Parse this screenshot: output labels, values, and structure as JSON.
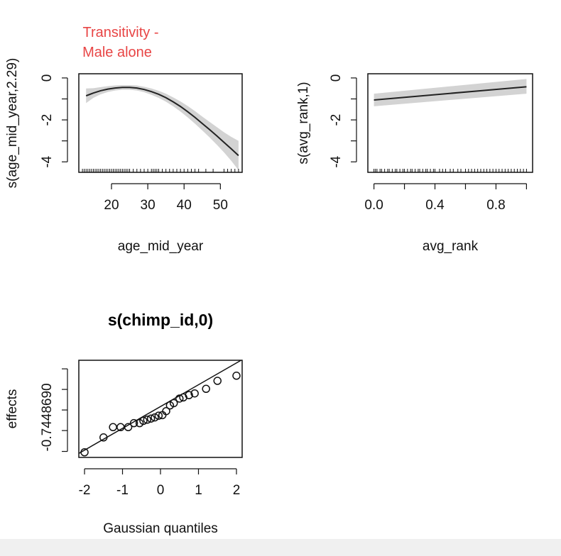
{
  "annotation": {
    "line1": "Transitivity -",
    "line2": "Male alone",
    "color": "#e84545"
  },
  "chart_data": [
    {
      "id": "age",
      "type": "line",
      "title": "",
      "xlabel": "age_mid_year",
      "ylabel": "s(age_mid_year,2.29)",
      "xlim": [
        11,
        56
      ],
      "ylim": [
        -4.5,
        0.2
      ],
      "xticks": [
        20,
        30,
        40,
        50
      ],
      "xtick_labels": [
        "20",
        "30",
        "40",
        "50"
      ],
      "yticks": [
        0,
        -1,
        -2,
        -3,
        -4
      ],
      "ytick_labels": [
        "0",
        "",
        "-2",
        "",
        "-4"
      ],
      "band_color": "#d3d3d3",
      "line_color": "#222222",
      "series": [
        {
          "x": [
            13,
            15,
            17,
            19,
            21,
            23,
            25,
            27,
            29,
            31,
            33,
            35,
            37,
            39,
            41,
            43,
            45,
            47,
            49,
            51,
            53,
            55
          ],
          "y": [
            -0.85,
            -0.72,
            -0.61,
            -0.53,
            -0.48,
            -0.45,
            -0.45,
            -0.48,
            -0.55,
            -0.65,
            -0.78,
            -0.94,
            -1.14,
            -1.36,
            -1.61,
            -1.88,
            -2.17,
            -2.46,
            -2.76,
            -3.07,
            -3.38,
            -3.7
          ],
          "lower": [
            -1.2,
            -0.95,
            -0.78,
            -0.67,
            -0.6,
            -0.56,
            -0.56,
            -0.6,
            -0.68,
            -0.8,
            -0.95,
            -1.13,
            -1.35,
            -1.6,
            -1.88,
            -2.18,
            -2.5,
            -2.83,
            -3.18,
            -3.55,
            -3.95,
            -4.4
          ],
          "upper": [
            -0.5,
            -0.49,
            -0.44,
            -0.39,
            -0.36,
            -0.34,
            -0.34,
            -0.36,
            -0.42,
            -0.5,
            -0.61,
            -0.75,
            -0.93,
            -1.12,
            -1.34,
            -1.58,
            -1.84,
            -2.09,
            -2.34,
            -2.59,
            -2.81,
            -3.0
          ]
        }
      ],
      "rug": [
        12,
        12.5,
        13,
        13.5,
        14,
        14.5,
        15,
        15.5,
        16,
        16.5,
        17,
        17.5,
        18,
        18.5,
        19,
        19.5,
        20,
        20.5,
        21,
        21.5,
        22,
        22.5,
        23,
        23.5,
        24,
        24.5,
        25,
        26,
        27,
        28,
        29,
        30,
        31,
        31.5,
        32,
        32.5,
        33,
        34,
        35,
        36,
        37,
        38,
        39,
        40,
        41,
        42,
        43,
        44,
        46,
        48,
        51,
        52,
        53,
        54,
        55
      ]
    },
    {
      "id": "rank",
      "type": "line",
      "title": "",
      "xlabel": "avg_rank",
      "ylabel": "s(avg_rank,1)",
      "xlim": [
        -0.04,
        1.04
      ],
      "ylim": [
        -4.5,
        0.2
      ],
      "xticks": [
        0,
        0.2,
        0.4,
        0.6,
        0.8,
        1.0
      ],
      "xtick_labels": [
        "0.0",
        "",
        "0.4",
        "",
        "0.8",
        ""
      ],
      "yticks": [
        0,
        -1,
        -2,
        -3,
        -4
      ],
      "ytick_labels": [
        "0",
        "",
        "-2",
        "",
        "-4"
      ],
      "band_color": "#d3d3d3",
      "line_color": "#222222",
      "series": [
        {
          "x": [
            0,
            1
          ],
          "y": [
            -1.05,
            -0.42
          ],
          "lower": [
            -1.35,
            -0.75
          ],
          "upper": [
            -0.75,
            -0.05
          ]
        }
      ],
      "rug": [
        0.0,
        0.01,
        0.02,
        0.04,
        0.05,
        0.07,
        0.09,
        0.1,
        0.12,
        0.14,
        0.15,
        0.17,
        0.19,
        0.2,
        0.22,
        0.24,
        0.25,
        0.27,
        0.29,
        0.3,
        0.32,
        0.34,
        0.35,
        0.37,
        0.39,
        0.4,
        0.43,
        0.45,
        0.47,
        0.5,
        0.52,
        0.55,
        0.57,
        0.6,
        0.62,
        0.64,
        0.66,
        0.68,
        0.7,
        0.72,
        0.74,
        0.76,
        0.78,
        0.8,
        0.82,
        0.84,
        0.86,
        0.88,
        0.9,
        0.92,
        0.94,
        0.96,
        0.98,
        1.0
      ]
    },
    {
      "id": "qq",
      "type": "scatter",
      "title": "s(chimp_id,0)",
      "xlabel": "Gaussian quantiles",
      "ylabel": "effects",
      "xlim": [
        -2.15,
        2.15
      ],
      "ylim": [
        -0.85,
        0.85
      ],
      "xticks": [
        -2,
        -1,
        0,
        1,
        2
      ],
      "xtick_labels": [
        "-2",
        "-1",
        "0",
        "1",
        "2"
      ],
      "yticks": [
        -0.744869,
        -0.38,
        -0.02,
        0.34,
        0.7
      ],
      "ytick_labels": [
        "-0.7448690",
        "",
        "",
        "",
        ""
      ],
      "ref_line": {
        "x": [
          -2.15,
          2.15
        ],
        "y": [
          -0.78,
          0.86
        ]
      },
      "points": {
        "x": [
          -2.0,
          -1.5,
          -1.25,
          -1.05,
          -0.85,
          -0.7,
          -0.55,
          -0.45,
          -0.35,
          -0.25,
          -0.15,
          -0.05,
          0.05,
          0.15,
          0.25,
          0.35,
          0.5,
          0.6,
          0.75,
          0.9,
          1.2,
          1.5,
          2.0
        ],
        "y": [
          -0.76,
          -0.5,
          -0.32,
          -0.32,
          -0.32,
          -0.25,
          -0.25,
          -0.21,
          -0.19,
          -0.17,
          -0.15,
          -0.12,
          -0.11,
          -0.04,
          0.06,
          0.1,
          0.18,
          0.2,
          0.24,
          0.27,
          0.35,
          0.49,
          0.58
        ]
      }
    }
  ]
}
